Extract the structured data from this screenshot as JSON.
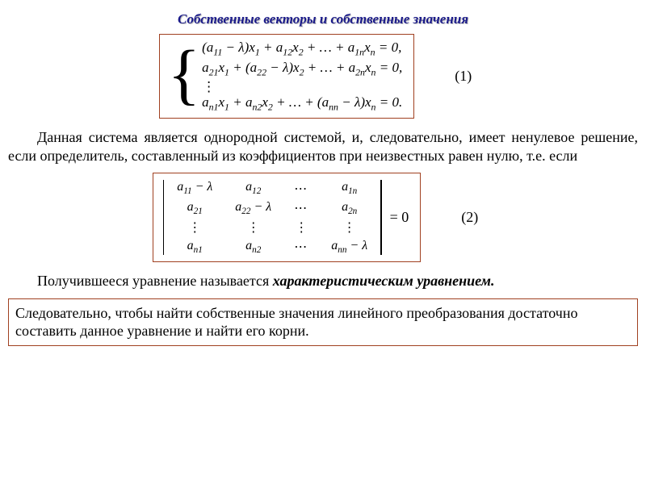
{
  "title": "Собственные векторы и собственные значения",
  "eq1": {
    "label": "(1)",
    "lines": [
      "(a<sub>11</sub> − λ)x<sub>1</sub> + a<sub>12</sub>x<sub>2</sub> + … + a<sub>1n</sub>x<sub>n</sub> = 0,",
      "a<sub>21</sub>x<sub>1</sub> + (a<sub>22</sub> − λ)x<sub>2</sub> + … + a<sub>2n</sub>x<sub>n</sub> = 0,",
      "⋮",
      "a<sub>n1</sub>x<sub>1</sub> + a<sub>n2</sub>x<sub>2</sub> + … + (a<sub>nn</sub> − λ)x<sub>n</sub> = 0."
    ]
  },
  "para1": "Данная система является однородной системой, и, следовательно, имеет ненулевое решение, если определитель, составленный из коэффициентов при неизвестных равен нулю, т.е. если",
  "eq2": {
    "label": "(2)",
    "rows": [
      [
        "a<sub>11</sub> − λ",
        "a<sub>12</sub>",
        "⋯",
        "a<sub>1n</sub>"
      ],
      [
        "a<sub>21</sub>",
        "a<sub>22</sub> − λ",
        "⋯",
        "a<sub>2n</sub>"
      ],
      [
        "⋮",
        "⋮",
        "⋮",
        "⋮"
      ],
      [
        "a<sub>n1</sub>",
        "a<sub>n2</sub>",
        "⋯",
        "a<sub>nn</sub> − λ"
      ]
    ],
    "rhs": "= 0"
  },
  "para2_prefix": "Получившееся уравнение называется ",
  "para2_em": "характеристическим уравнением.",
  "note": "Следовательно, чтобы найти собственные значения линейного преобразования достаточно составить данное уравнение и найти его корни.",
  "colors": {
    "border": "#a04020",
    "title": "#1a1a8a",
    "text": "#000000",
    "bg": "#ffffff"
  }
}
